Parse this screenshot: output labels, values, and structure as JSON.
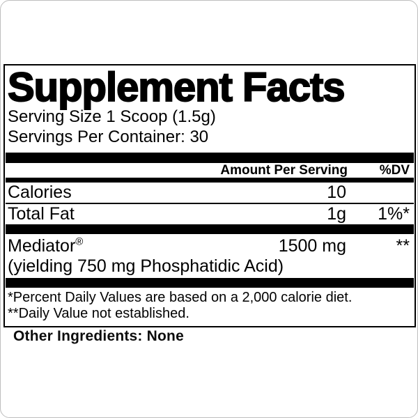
{
  "label": {
    "title": "Supplement Facts",
    "serving_size": "Serving Size 1 Scoop (1.5g)",
    "servings_per_container": "Servings Per Container: 30",
    "header": {
      "amount": "Amount Per Serving",
      "dv": "%DV"
    },
    "rows": [
      {
        "name": "Calories",
        "amount": "10",
        "dv": ""
      },
      {
        "name": "Total Fat",
        "amount": "1g",
        "dv": "1%*"
      },
      {
        "name": "Mediator",
        "reg": "®",
        "amount": "1500 mg",
        "dv": "**",
        "sub": "(yielding 750 mg Phosphatidic Acid)"
      }
    ],
    "footnotes": [
      "*Percent Daily Values are based on a 2,000 calorie diet.",
      "**Daily Value not established."
    ]
  },
  "other_ingredients": "Other Ingredients: None",
  "colors": {
    "text": "#000000",
    "panel_background": "#ffffff",
    "panel_border": "#000000",
    "page_frame": "#bdbdbd"
  }
}
